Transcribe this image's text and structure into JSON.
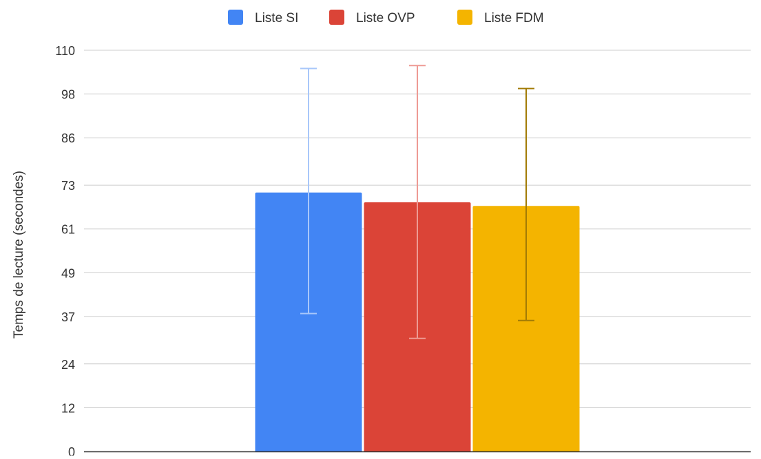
{
  "chart_data": {
    "type": "bar",
    "title": "",
    "xlabel": "",
    "ylabel": "Temps de lecture (secondes)",
    "ylim": [
      0,
      110
    ],
    "yticks": [
      0,
      12,
      24,
      37,
      49,
      61,
      73,
      86,
      98,
      110
    ],
    "categories": [
      ""
    ],
    "grid": true,
    "legend_position": "top",
    "series": [
      {
        "name": "Liste SI",
        "color": "#4285f4",
        "errorColor": "#a8c7fa",
        "values": [
          71.0
        ],
        "error_low": [
          37.8
        ],
        "error_high": [
          105.0
        ]
      },
      {
        "name": "Liste OVP",
        "color": "#db4437",
        "errorColor": "#ee9a94",
        "values": [
          68.3
        ],
        "error_low": [
          31.0
        ],
        "error_high": [
          105.8
        ]
      },
      {
        "name": "Liste FDM",
        "color": "#f4b400",
        "errorColor": "#a27b05",
        "values": [
          67.3
        ],
        "error_low": [
          35.9
        ],
        "error_high": [
          99.5
        ]
      }
    ]
  }
}
